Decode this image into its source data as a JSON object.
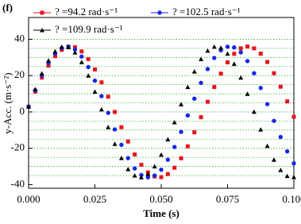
{
  "chart_data": {
    "type": "scatter",
    "panel_label": "(f)",
    "xlabel": "Time (s)",
    "ylabel": "y-Acc. (m·s⁻²)",
    "xlim": [
      0,
      0.1
    ],
    "ylim": [
      -42,
      52
    ],
    "xticks": [
      {
        "value": 0,
        "label": "0.000"
      },
      0.025,
      {
        "value": 0.05,
        "label": "0.050"
      },
      0.075,
      {
        "value": 0.1,
        "label": "0.100"
      }
    ],
    "yticks": [
      -40,
      -20,
      0,
      20,
      40
    ],
    "ygrid": [
      -35,
      -30,
      -25,
      -20,
      -15,
      -10,
      -5,
      0,
      5,
      10,
      15,
      20,
      25,
      30,
      35,
      40
    ],
    "x": [
      0,
      0.0025,
      0.005,
      0.0075,
      0.01,
      0.0125,
      0.015,
      0.0175,
      0.02,
      0.0225,
      0.025,
      0.0275,
      0.03,
      0.0325,
      0.035,
      0.0375,
      0.04,
      0.0425,
      0.045,
      0.0475,
      0.05,
      0.0525,
      0.055,
      0.0575,
      0.06,
      0.0625,
      0.065,
      0.0675,
      0.07,
      0.0725,
      0.075,
      0.0775,
      0.08,
      0.0825,
      0.085,
      0.0875,
      0.09,
      0.0925,
      0.095,
      0.0975,
      0.1
    ],
    "series": [
      {
        "name": "? =94.2 rad·s⁻¹",
        "color": "#e8141c",
        "marker": "square",
        "values": [
          2.9,
          11.2,
          18.9,
          25.5,
          30.7,
          34.2,
          35.9,
          35.6,
          33.3,
          29.1,
          23.4,
          16.3,
          8.4,
          0.0,
          -8.4,
          -16.3,
          -23.4,
          -29.1,
          -33.3,
          -35.5,
          -35.9,
          -34.2,
          -30.7,
          -25.5,
          -18.9,
          -11.2,
          -2.9,
          5.6,
          13.7,
          21.1,
          27.3,
          32.0,
          35.0,
          36.0,
          35.0,
          32.1,
          27.5,
          21.3,
          13.9,
          5.8,
          -2.7
        ]
      },
      {
        "name": "? =102.5 rad·s⁻¹",
        "color": "#1428e6",
        "marker": "circle",
        "values": [
          2.9,
          11.9,
          20.1,
          27.0,
          32.2,
          35.2,
          36.0,
          34.4,
          30.5,
          24.7,
          17.2,
          8.7,
          -0.5,
          -9.6,
          -18.1,
          -25.4,
          -31.1,
          -34.7,
          -36.0,
          -35.0,
          -31.8,
          -26.3,
          -19.3,
          -11.0,
          -1.9,
          7.3,
          16.0,
          23.6,
          29.7,
          33.9,
          35.9,
          35.5,
          32.8,
          28.0,
          21.3,
          13.2,
          4.3,
          -4.9,
          -13.8,
          -21.7,
          -28.3
        ]
      },
      {
        "name": "? =109.9 rad·s⁻¹",
        "color": "#000000",
        "marker": "triangle",
        "values": [
          2.9,
          12.5,
          21.2,
          28.3,
          33.3,
          35.8,
          35.6,
          32.7,
          27.4,
          20.0,
          11.1,
          1.4,
          -8.4,
          -17.6,
          -25.4,
          -31.5,
          -35.0,
          -36.0,
          -34.2,
          -30.0,
          -23.6,
          -15.1,
          -5.7,
          4.2,
          13.7,
          22.2,
          29.1,
          33.7,
          35.9,
          35.3,
          32.1,
          26.5,
          18.9,
          9.9,
          0.1,
          -9.7,
          -18.7,
          -26.3,
          -32.0,
          -35.3,
          -35.9
        ]
      }
    ]
  }
}
